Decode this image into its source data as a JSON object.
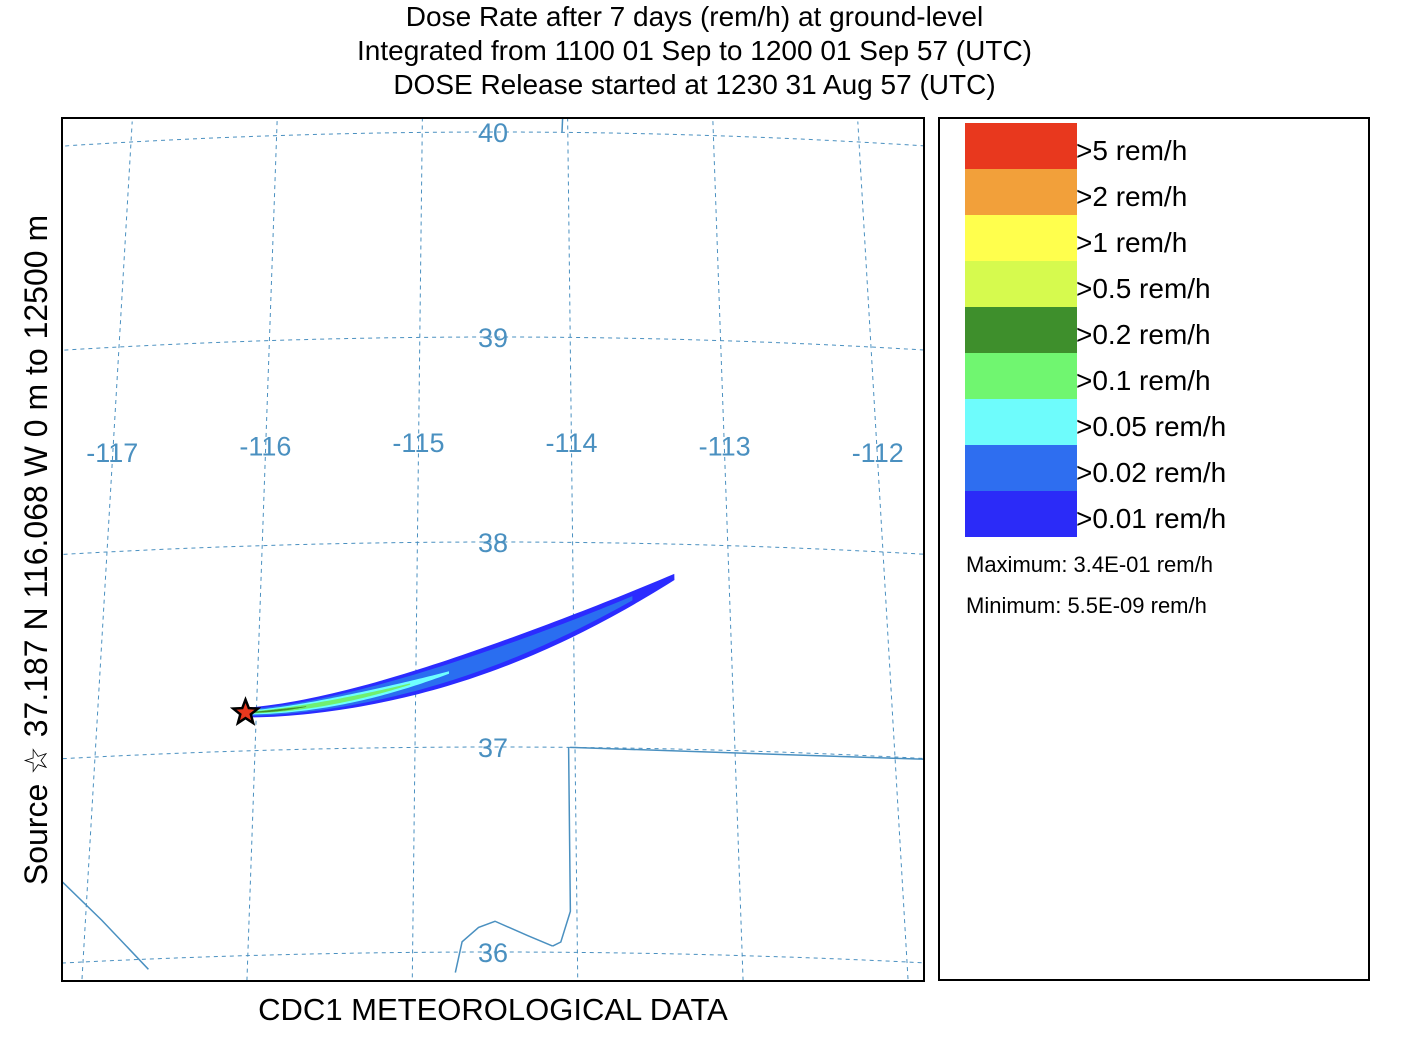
{
  "title_lines": [
    "Dose Rate after 7 days (rem/h) at ground-level",
    "Integrated from 1100 01 Sep to 1200 01 Sep 57 (UTC)",
    "DOSE Release started at 1230 31 Aug 57 (UTC)"
  ],
  "map": {
    "grid_color": "#4a90c0",
    "longitude_labels": [
      "-117",
      "-116",
      "-115",
      "-114",
      "-113",
      "-112"
    ],
    "latitude_labels": [
      "40",
      "39",
      "38",
      "37",
      "36"
    ],
    "source_marker": "star-icon",
    "source_location": {
      "lat": 37.187,
      "lon": -116.068
    },
    "plume_extent": {
      "lon_min": -116.068,
      "lon_max": -113.35,
      "lat_min": 37.15,
      "lat_max": 37.86
    },
    "plume_levels": [
      "#2b2bff",
      "#2a6ef0",
      "#6fffff",
      "#70f070",
      "#3e8f2c"
    ]
  },
  "legend": {
    "items": [
      {
        "label": ">5 rem/h",
        "color": "#e8381e"
      },
      {
        "label": ">2 rem/h",
        "color": "#f2a03a"
      },
      {
        "label": ">1 rem/h",
        "color": "#ffff4d"
      },
      {
        "label": ">0.5 rem/h",
        "color": "#d6fa4e"
      },
      {
        "label": ">0.2 rem/h",
        "color": "#3e8f2c"
      },
      {
        "label": ">0.1 rem/h",
        "color": "#70f670"
      },
      {
        "label": ">0.05 rem/h",
        "color": "#6efcfc"
      },
      {
        "label": ">0.02 rem/h",
        "color": "#2e6ef0"
      },
      {
        "label": ">0.01 rem/h",
        "color": "#2b2bf8"
      }
    ],
    "maximum": "Maximum: 3.4E-01 rem/h",
    "minimum": "Minimum: 5.5E-09 rem/h"
  },
  "side_label": "Source ☆ 37.187  N 116.068  W      0 m to 12500 m",
  "bottom_label": "CDC1 METEOROLOGICAL DATA"
}
